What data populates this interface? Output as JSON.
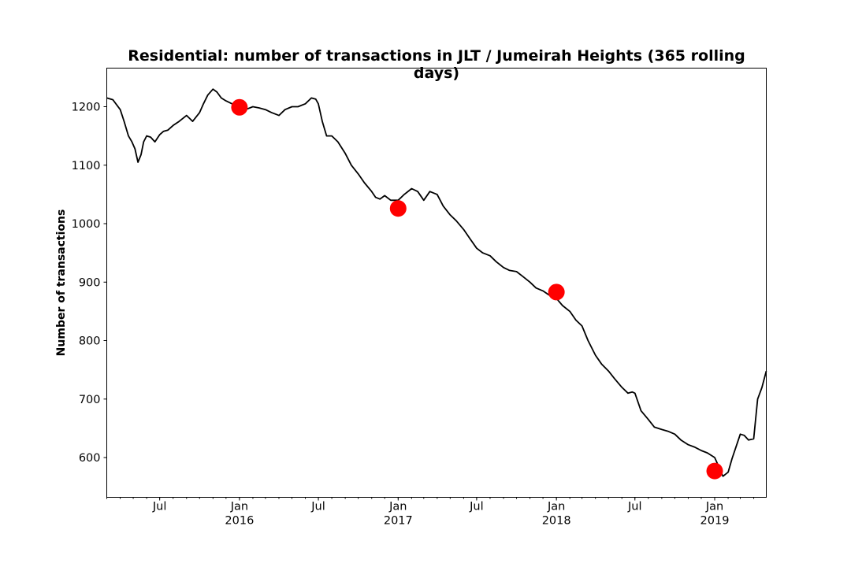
{
  "chart_data": {
    "type": "line",
    "title": "Residential: number of transactions in JLT / Jumeirah Heights (365 rolling days)",
    "xlabel": "",
    "ylabel": "Number of transactions",
    "xlim": [
      "2015-03-01",
      "2019-04-30"
    ],
    "ylim": [
      532,
      1266
    ],
    "grid": false,
    "y_ticks": [
      600,
      700,
      800,
      900,
      1000,
      1100,
      1200
    ],
    "x_ticks": [
      {
        "date": "2015-07-01",
        "label": "Jul",
        "year": ""
      },
      {
        "date": "2016-01-01",
        "label": "Jan",
        "year": "2016"
      },
      {
        "date": "2016-07-01",
        "label": "Jul",
        "year": ""
      },
      {
        "date": "2017-01-01",
        "label": "Jan",
        "year": "2017"
      },
      {
        "date": "2017-07-01",
        "label": "Jul",
        "year": ""
      },
      {
        "date": "2018-01-01",
        "label": "Jan",
        "year": "2018"
      },
      {
        "date": "2018-07-01",
        "label": "Jul",
        "year": ""
      },
      {
        "date": "2019-01-01",
        "label": "Jan",
        "year": "2019"
      }
    ],
    "series": [
      {
        "color": "#000000",
        "x": [
          "2015-03-01",
          "2015-03-15",
          "2015-04-01",
          "2015-04-10",
          "2015-04-20",
          "2015-04-28",
          "2015-05-05",
          "2015-05-12",
          "2015-05-19",
          "2015-05-25",
          "2015-06-01",
          "2015-06-10",
          "2015-06-20",
          "2015-07-01",
          "2015-07-10",
          "2015-07-20",
          "2015-08-01",
          "2015-08-15",
          "2015-09-01",
          "2015-09-15",
          "2015-10-01",
          "2015-10-10",
          "2015-10-20",
          "2015-11-01",
          "2015-11-10",
          "2015-11-20",
          "2015-12-01",
          "2015-12-15",
          "2016-01-01",
          "2016-01-15",
          "2016-02-01",
          "2016-02-15",
          "2016-03-01",
          "2016-03-15",
          "2016-04-01",
          "2016-04-15",
          "2016-05-01",
          "2016-05-15",
          "2016-06-01",
          "2016-06-15",
          "2016-06-25",
          "2016-07-01",
          "2016-07-10",
          "2016-07-20",
          "2016-08-01",
          "2016-08-15",
          "2016-09-01",
          "2016-09-15",
          "2016-10-01",
          "2016-10-15",
          "2016-11-01",
          "2016-11-10",
          "2016-11-20",
          "2016-12-01",
          "2016-12-15",
          "2017-01-01",
          "2017-01-15",
          "2017-02-01",
          "2017-02-15",
          "2017-03-01",
          "2017-03-15",
          "2017-04-01",
          "2017-04-15",
          "2017-05-01",
          "2017-05-15",
          "2017-06-01",
          "2017-06-15",
          "2017-07-01",
          "2017-07-15",
          "2017-08-01",
          "2017-08-15",
          "2017-09-01",
          "2017-09-15",
          "2017-10-01",
          "2017-10-15",
          "2017-11-01",
          "2017-11-15",
          "2017-12-01",
          "2017-12-15",
          "2018-01-01",
          "2018-01-15",
          "2018-02-01",
          "2018-02-15",
          "2018-03-01",
          "2018-03-15",
          "2018-04-01",
          "2018-04-15",
          "2018-05-01",
          "2018-05-15",
          "2018-06-01",
          "2018-06-15",
          "2018-06-25",
          "2018-07-01",
          "2018-07-15",
          "2018-08-01",
          "2018-08-15",
          "2018-09-01",
          "2018-09-15",
          "2018-10-01",
          "2018-10-15",
          "2018-11-01",
          "2018-11-15",
          "2018-12-01",
          "2018-12-15",
          "2019-01-01",
          "2019-01-10",
          "2019-01-20",
          "2019-02-01",
          "2019-02-10",
          "2019-02-20",
          "2019-03-01",
          "2019-03-10",
          "2019-03-20",
          "2019-04-01",
          "2019-04-10",
          "2019-04-20",
          "2019-04-30"
        ],
        "values": [
          1215,
          1212,
          1195,
          1175,
          1150,
          1140,
          1128,
          1105,
          1118,
          1140,
          1150,
          1148,
          1140,
          1152,
          1158,
          1160,
          1168,
          1175,
          1185,
          1175,
          1190,
          1205,
          1220,
          1230,
          1225,
          1215,
          1210,
          1205,
          1200,
          1195,
          1200,
          1198,
          1195,
          1190,
          1185,
          1195,
          1200,
          1200,
          1205,
          1215,
          1213,
          1205,
          1175,
          1150,
          1150,
          1140,
          1120,
          1100,
          1085,
          1070,
          1055,
          1045,
          1042,
          1048,
          1040,
          1040,
          1050,
          1060,
          1055,
          1040,
          1055,
          1050,
          1030,
          1015,
          1005,
          990,
          975,
          958,
          950,
          945,
          935,
          925,
          920,
          918,
          910,
          900,
          890,
          885,
          878,
          872,
          860,
          850,
          835,
          825,
          800,
          775,
          760,
          748,
          735,
          720,
          710,
          712,
          710,
          680,
          665,
          652,
          648,
          645,
          640,
          630,
          622,
          618,
          612,
          608,
          600,
          585,
          568,
          575,
          598,
          620,
          640,
          638,
          630,
          632,
          700,
          720,
          748
        ]
      }
    ],
    "markers": {
      "color": "#ff0000",
      "x": [
        "2016-01-01",
        "2017-01-01",
        "2018-01-01",
        "2019-01-01"
      ],
      "values": [
        1199,
        1026,
        883,
        577
      ]
    }
  }
}
